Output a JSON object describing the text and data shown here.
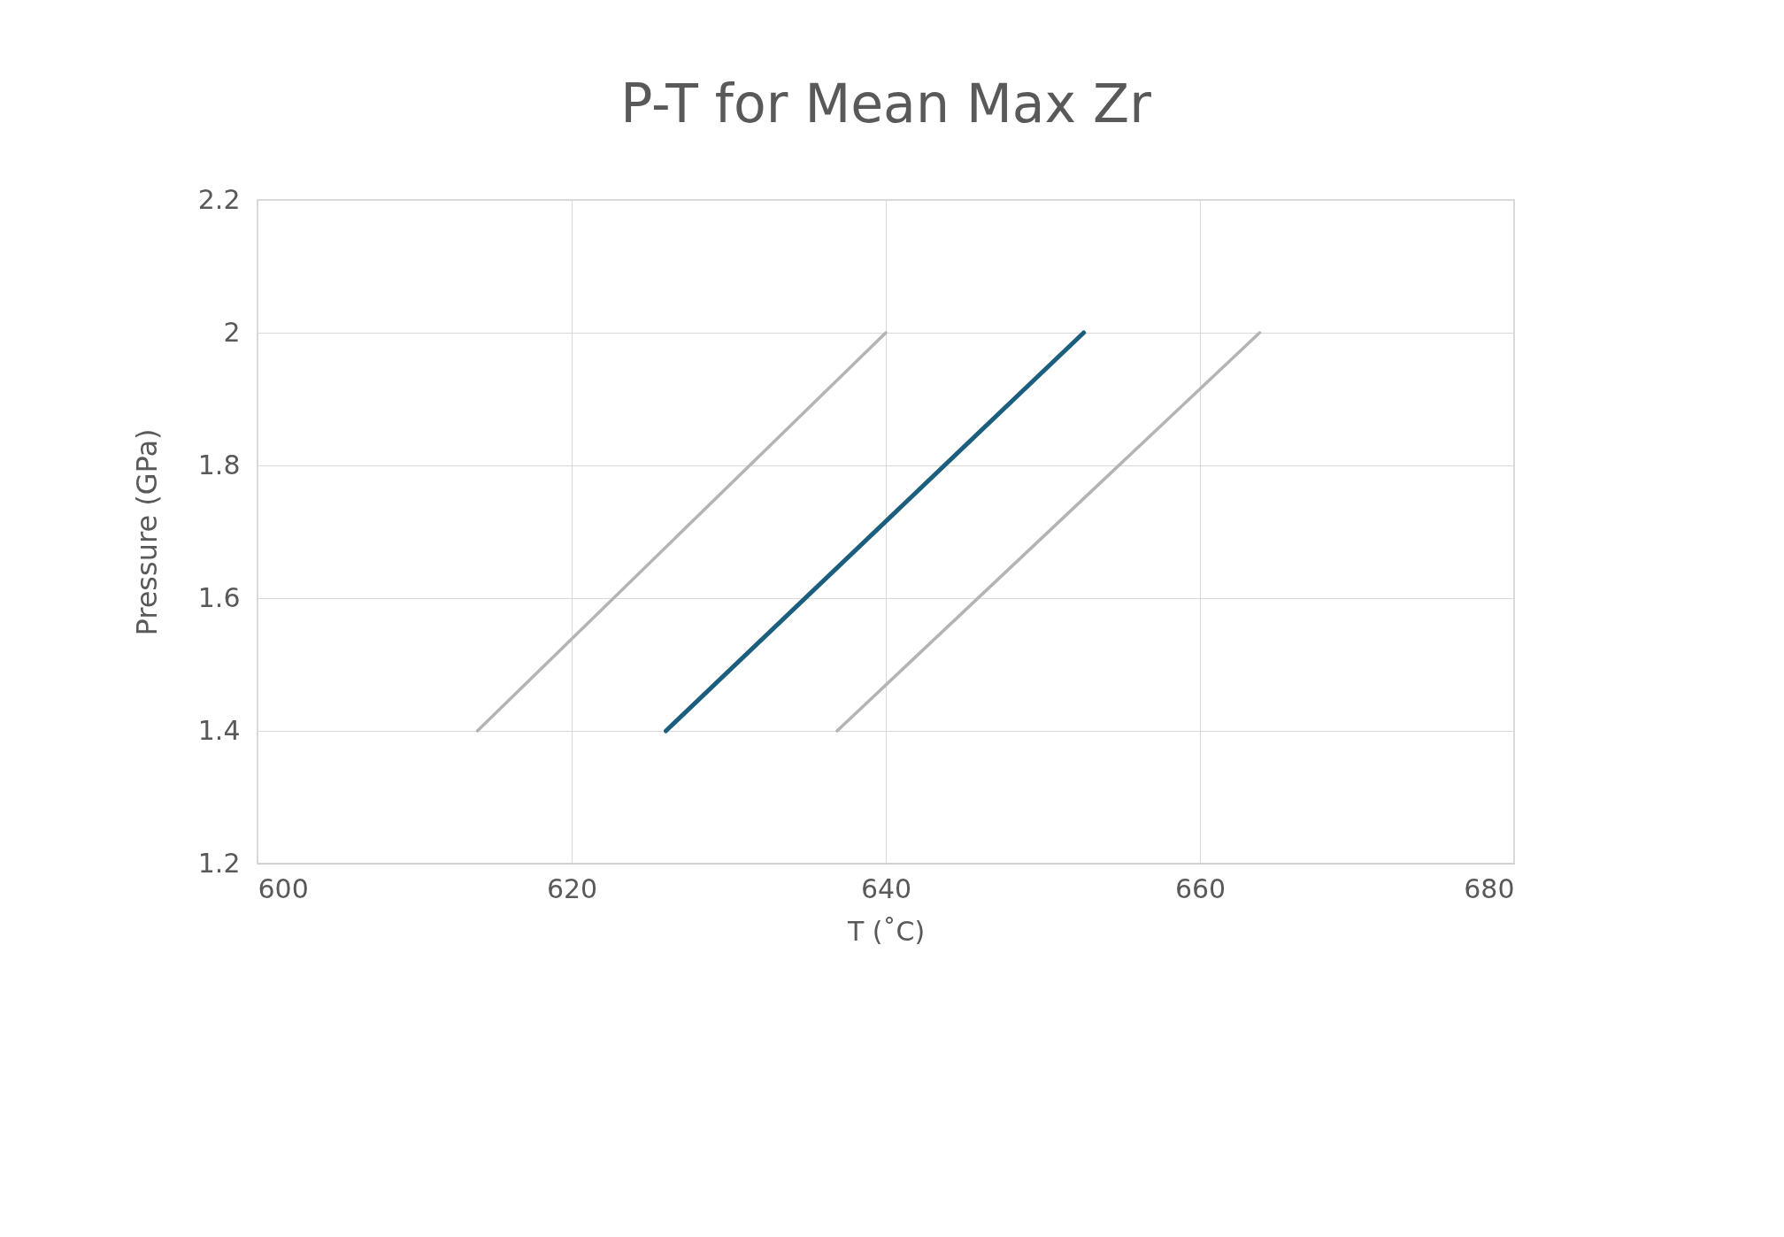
{
  "chart_data": {
    "type": "line",
    "title": "P-T for Mean Max Zr",
    "xlabel": "T (˚C)",
    "ylabel": "Pressure (GPa)",
    "series": [
      {
        "color": "#b4b4b4",
        "x": [
          614,
          640
        ],
        "values": [
          1.4,
          2.0
        ]
      },
      {
        "color": "#1b5e7e",
        "x": [
          626,
          652.6
        ],
        "values": [
          1.4,
          2.0
        ]
      },
      {
        "color": "#b4b4b4",
        "x": [
          636.9,
          663.8
        ],
        "values": [
          1.4,
          2.0
        ]
      }
    ],
    "xlim": [
      600,
      680
    ],
    "xticks": [
      600,
      620,
      640,
      660,
      680
    ],
    "ylim": [
      1.2,
      2.2
    ],
    "yticks": [
      1.2,
      1.4,
      1.6,
      1.8,
      2,
      2.2
    ],
    "grid": true,
    "marker": "none",
    "line_style": "solid"
  }
}
